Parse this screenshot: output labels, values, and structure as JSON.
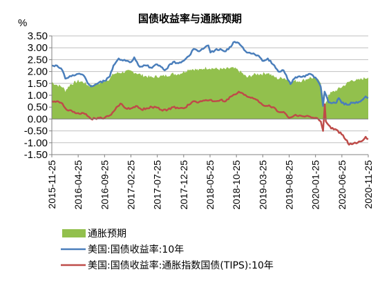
{
  "chart_data": {
    "type": "area+line",
    "title": "国债收益率与通胀预期",
    "ylabel": "%",
    "ylim": [
      -1.5,
      3.5
    ],
    "yticks": [
      "3.50",
      "3.00",
      "2.50",
      "2.00",
      "1.50",
      "1.00",
      "0.50",
      "0.00",
      "-0.50",
      "-1.00",
      "-1.50"
    ],
    "xticks": [
      "2015-11-25",
      "2016-04-25",
      "2016-09-25",
      "2017-02-25",
      "2017-07-25",
      "2017-12-25",
      "2018-05-25",
      "2018-10-25",
      "2019-03-25",
      "2019-08-25",
      "2020-01-25",
      "2020-06-25",
      "2020-11-25"
    ],
    "grid": true,
    "legend_position": "bottom",
    "x_start": "2015-11-25",
    "x_end": "2020-11-25",
    "series": [
      {
        "name": "通胀预期",
        "kind": "area",
        "color": "#92c04d",
        "points": [
          [
            "2015-11-25",
            1.55
          ],
          [
            "2015-12-20",
            1.45
          ],
          [
            "2016-01-25",
            1.35
          ],
          [
            "2016-02-11",
            1.2
          ],
          [
            "2016-03-10",
            1.45
          ],
          [
            "2016-04-25",
            1.6
          ],
          [
            "2016-05-25",
            1.55
          ],
          [
            "2016-06-27",
            1.4
          ],
          [
            "2016-07-20",
            1.45
          ],
          [
            "2016-08-25",
            1.5
          ],
          [
            "2016-09-25",
            1.6
          ],
          [
            "2016-10-25",
            1.7
          ],
          [
            "2016-11-15",
            1.9
          ],
          [
            "2016-12-20",
            1.95
          ],
          [
            "2017-01-25",
            2.0
          ],
          [
            "2017-02-25",
            2.0
          ],
          [
            "2017-03-25",
            1.95
          ],
          [
            "2017-04-25",
            1.85
          ],
          [
            "2017-05-25",
            1.8
          ],
          [
            "2017-06-25",
            1.75
          ],
          [
            "2017-07-25",
            1.8
          ],
          [
            "2017-08-25",
            1.8
          ],
          [
            "2017-09-25",
            1.85
          ],
          [
            "2017-10-25",
            1.9
          ],
          [
            "2017-11-25",
            1.9
          ],
          [
            "2017-12-25",
            1.98
          ],
          [
            "2018-01-25",
            2.1
          ],
          [
            "2018-02-25",
            2.1
          ],
          [
            "2018-03-25",
            2.05
          ],
          [
            "2018-04-25",
            2.15
          ],
          [
            "2018-05-25",
            2.15
          ],
          [
            "2018-06-25",
            2.12
          ],
          [
            "2018-07-25",
            2.1
          ],
          [
            "2018-08-25",
            2.1
          ],
          [
            "2018-09-25",
            2.15
          ],
          [
            "2018-10-25",
            2.1
          ],
          [
            "2018-11-25",
            1.95
          ],
          [
            "2018-12-25",
            1.75
          ],
          [
            "2019-01-25",
            1.85
          ],
          [
            "2019-02-25",
            1.9
          ],
          [
            "2019-03-25",
            1.9
          ],
          [
            "2019-04-25",
            1.95
          ],
          [
            "2019-05-25",
            1.8
          ],
          [
            "2019-06-25",
            1.7
          ],
          [
            "2019-07-25",
            1.75
          ],
          [
            "2019-08-25",
            1.6
          ],
          [
            "2019-09-25",
            1.6
          ],
          [
            "2019-10-25",
            1.6
          ],
          [
            "2019-11-25",
            1.65
          ],
          [
            "2019-12-25",
            1.75
          ],
          [
            "2020-01-25",
            1.7
          ],
          [
            "2020-02-25",
            1.55
          ],
          [
            "2020-03-10",
            0.95
          ],
          [
            "2020-03-19",
            0.5
          ],
          [
            "2020-04-10",
            1.05
          ],
          [
            "2020-05-10",
            1.15
          ],
          [
            "2020-06-25",
            1.35
          ],
          [
            "2020-07-25",
            1.5
          ],
          [
            "2020-08-25",
            1.65
          ],
          [
            "2020-09-25",
            1.62
          ],
          [
            "2020-10-25",
            1.7
          ],
          [
            "2020-11-25",
            1.75
          ]
        ]
      },
      {
        "name": "美国:国债收益率:10年",
        "kind": "line",
        "color": "#4a7ebb",
        "points": [
          [
            "2015-11-25",
            2.25
          ],
          [
            "2015-12-25",
            2.25
          ],
          [
            "2016-01-25",
            2.05
          ],
          [
            "2016-02-11",
            1.7
          ],
          [
            "2016-03-25",
            1.85
          ],
          [
            "2016-04-25",
            1.9
          ],
          [
            "2016-05-25",
            1.85
          ],
          [
            "2016-06-27",
            1.45
          ],
          [
            "2016-07-08",
            1.37
          ],
          [
            "2016-08-25",
            1.55
          ],
          [
            "2016-09-25",
            1.6
          ],
          [
            "2016-10-25",
            1.8
          ],
          [
            "2016-11-15",
            2.25
          ],
          [
            "2016-12-15",
            2.55
          ],
          [
            "2017-01-25",
            2.45
          ],
          [
            "2017-02-25",
            2.4
          ],
          [
            "2017-03-15",
            2.6
          ],
          [
            "2017-04-15",
            2.2
          ],
          [
            "2017-05-25",
            2.25
          ],
          [
            "2017-06-25",
            2.15
          ],
          [
            "2017-07-25",
            2.3
          ],
          [
            "2017-09-07",
            2.05
          ],
          [
            "2017-10-25",
            2.4
          ],
          [
            "2017-11-25",
            2.35
          ],
          [
            "2017-12-25",
            2.45
          ],
          [
            "2018-01-25",
            2.65
          ],
          [
            "2018-02-21",
            2.95
          ],
          [
            "2018-03-25",
            2.85
          ],
          [
            "2018-04-25",
            3.0
          ],
          [
            "2018-05-17",
            3.1
          ],
          [
            "2018-05-29",
            2.8
          ],
          [
            "2018-06-25",
            2.9
          ],
          [
            "2018-07-25",
            2.95
          ],
          [
            "2018-08-25",
            2.85
          ],
          [
            "2018-09-25",
            3.05
          ],
          [
            "2018-10-08",
            3.23
          ],
          [
            "2018-11-08",
            3.2
          ],
          [
            "2018-12-25",
            2.8
          ],
          [
            "2019-01-25",
            2.75
          ],
          [
            "2019-02-25",
            2.68
          ],
          [
            "2019-03-25",
            2.45
          ],
          [
            "2019-04-25",
            2.55
          ],
          [
            "2019-05-25",
            2.3
          ],
          [
            "2019-06-25",
            2.0
          ],
          [
            "2019-07-25",
            2.05
          ],
          [
            "2019-08-25",
            1.6
          ],
          [
            "2019-09-03",
            1.47
          ],
          [
            "2019-09-25",
            1.7
          ],
          [
            "2019-10-25",
            1.8
          ],
          [
            "2019-11-25",
            1.78
          ],
          [
            "2019-12-25",
            1.9
          ],
          [
            "2020-01-25",
            1.75
          ],
          [
            "2020-02-25",
            1.35
          ],
          [
            "2020-03-09",
            0.55
          ],
          [
            "2020-03-18",
            1.15
          ],
          [
            "2020-04-10",
            0.7
          ],
          [
            "2020-05-25",
            0.68
          ],
          [
            "2020-06-08",
            0.88
          ],
          [
            "2020-06-25",
            0.68
          ],
          [
            "2020-07-25",
            0.6
          ],
          [
            "2020-08-25",
            0.68
          ],
          [
            "2020-09-25",
            0.68
          ],
          [
            "2020-10-25",
            0.82
          ],
          [
            "2020-11-10",
            0.95
          ],
          [
            "2020-11-25",
            0.88
          ]
        ]
      },
      {
        "name": "美国:国债收益率:通胀指数国债(TIPS):10年",
        "kind": "line",
        "color": "#be4b48",
        "points": [
          [
            "2015-11-25",
            0.75
          ],
          [
            "2015-12-25",
            0.75
          ],
          [
            "2016-01-25",
            0.65
          ],
          [
            "2016-02-11",
            0.45
          ],
          [
            "2016-03-25",
            0.3
          ],
          [
            "2016-04-25",
            0.25
          ],
          [
            "2016-05-25",
            0.25
          ],
          [
            "2016-06-25",
            0.1
          ],
          [
            "2016-07-08",
            0.0
          ],
          [
            "2016-08-25",
            0.05
          ],
          [
            "2016-09-25",
            0.05
          ],
          [
            "2016-10-25",
            0.15
          ],
          [
            "2016-11-25",
            0.4
          ],
          [
            "2016-12-25",
            0.65
          ],
          [
            "2017-01-25",
            0.45
          ],
          [
            "2017-02-25",
            0.45
          ],
          [
            "2017-03-25",
            0.55
          ],
          [
            "2017-04-25",
            0.4
          ],
          [
            "2017-05-25",
            0.45
          ],
          [
            "2017-06-25",
            0.5
          ],
          [
            "2017-07-25",
            0.48
          ],
          [
            "2017-08-25",
            0.35
          ],
          [
            "2017-09-25",
            0.4
          ],
          [
            "2017-10-25",
            0.5
          ],
          [
            "2017-11-25",
            0.45
          ],
          [
            "2017-12-25",
            0.45
          ],
          [
            "2018-01-25",
            0.6
          ],
          [
            "2018-02-25",
            0.75
          ],
          [
            "2018-03-25",
            0.72
          ],
          [
            "2018-04-25",
            0.78
          ],
          [
            "2018-05-25",
            0.8
          ],
          [
            "2018-06-25",
            0.75
          ],
          [
            "2018-07-25",
            0.8
          ],
          [
            "2018-08-25",
            0.75
          ],
          [
            "2018-09-25",
            0.95
          ],
          [
            "2018-10-25",
            1.05
          ],
          [
            "2018-11-08",
            1.15
          ],
          [
            "2018-12-25",
            0.95
          ],
          [
            "2019-01-25",
            0.9
          ],
          [
            "2019-02-25",
            0.8
          ],
          [
            "2019-03-25",
            0.6
          ],
          [
            "2019-04-25",
            0.55
          ],
          [
            "2019-05-25",
            0.5
          ],
          [
            "2019-06-25",
            0.3
          ],
          [
            "2019-07-25",
            0.3
          ],
          [
            "2019-08-25",
            0.05
          ],
          [
            "2019-09-25",
            0.15
          ],
          [
            "2019-10-25",
            0.15
          ],
          [
            "2019-11-25",
            0.1
          ],
          [
            "2019-12-25",
            0.1
          ],
          [
            "2020-01-25",
            0.05
          ],
          [
            "2020-02-25",
            -0.1
          ],
          [
            "2020-03-09",
            -0.5
          ],
          [
            "2020-03-19",
            0.62
          ],
          [
            "2020-03-25",
            -0.1
          ],
          [
            "2020-04-25",
            -0.4
          ],
          [
            "2020-05-25",
            -0.45
          ],
          [
            "2020-06-25",
            -0.65
          ],
          [
            "2020-07-25",
            -0.9
          ],
          [
            "2020-08-06",
            -1.08
          ],
          [
            "2020-09-25",
            -1.0
          ],
          [
            "2020-10-25",
            -0.9
          ],
          [
            "2020-11-10",
            -0.75
          ],
          [
            "2020-11-25",
            -0.85
          ]
        ]
      }
    ]
  }
}
